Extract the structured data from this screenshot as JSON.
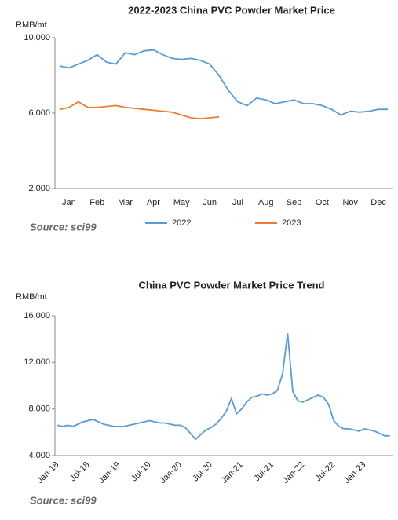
{
  "chart_data": [
    {
      "type": "line",
      "title": "2022-2023 China PVC Powder Market Price",
      "y_label": "RMB/mt",
      "source": "Source: sci99",
      "categories": [
        null,
        "Jan",
        null,
        null,
        "Feb",
        null,
        null,
        "Mar",
        null,
        null,
        "Apr",
        null,
        null,
        "May",
        null,
        null,
        "Jun",
        null,
        null,
        "Jul",
        null,
        null,
        "Aug",
        null,
        null,
        "Sep",
        null,
        null,
        "Oct",
        null,
        null,
        "Nov",
        null,
        null,
        "Dec",
        null
      ],
      "series": [
        {
          "name": "2022",
          "color": "#5b9bd5",
          "values": [
            8500,
            8400,
            8600,
            8800,
            9100,
            8700,
            8600,
            9200,
            9100,
            9300,
            9350,
            9100,
            8900,
            8850,
            8900,
            8800,
            8600,
            8000,
            7200,
            6600,
            6400,
            6800,
            6700,
            6500,
            6600,
            6700,
            6500,
            6500,
            6400,
            6200,
            5900,
            6100,
            6050,
            6100,
            6200,
            6200
          ]
        },
        {
          "name": "2023",
          "color": "#ed7d31",
          "values": [
            6200,
            6300,
            6600,
            6300,
            6300,
            6350,
            6400,
            6300,
            6250,
            6200,
            6150,
            6100,
            6050,
            5900,
            5750,
            5700,
            5750,
            5800,
            null,
            null,
            null,
            null,
            null,
            null,
            null,
            null,
            null,
            null,
            null,
            null,
            null,
            null,
            null,
            null,
            null,
            null
          ]
        }
      ],
      "ylim": [
        2000,
        10000
      ],
      "yticks": [
        {
          "value": 2000,
          "label": "2,000"
        },
        {
          "value": 6000,
          "label": "6,000"
        },
        {
          "value": 10000,
          "label": "10,000"
        }
      ],
      "grid": false,
      "legend": "bottom"
    },
    {
      "type": "line",
      "title": "China PVC Powder Market Price Trend",
      "y_label": "RMB/mt",
      "source": "Source: sci99",
      "categories": [
        "Jan-18",
        null,
        null,
        null,
        null,
        null,
        "Jul-18",
        null,
        null,
        null,
        null,
        null,
        "Jan-19",
        null,
        null,
        null,
        null,
        null,
        "Jul-19",
        null,
        null,
        null,
        null,
        null,
        "Jan-20",
        null,
        null,
        null,
        null,
        null,
        "Jul-20",
        null,
        null,
        null,
        null,
        null,
        "Jan-21",
        null,
        null,
        null,
        null,
        null,
        "Jul-21",
        null,
        null,
        null,
        null,
        null,
        "Jan-22",
        null,
        null,
        null,
        null,
        null,
        "Jul-22",
        null,
        null,
        null,
        null,
        null,
        "Jan-23",
        null,
        null,
        null,
        null,
        null
      ],
      "series": [
        {
          "color": "#5b9bd5",
          "values": [
            6600,
            6500,
            6600,
            6500,
            6700,
            6900,
            7000,
            7100,
            6900,
            6700,
            6600,
            6500,
            6500,
            6500,
            6600,
            6700,
            6800,
            6900,
            7000,
            6900,
            6800,
            6800,
            6700,
            6600,
            6600,
            6400,
            5900,
            5400,
            5800,
            6200,
            6400,
            6700,
            7200,
            7800,
            8900,
            7600,
            8000,
            8600,
            9000,
            9100,
            9300,
            9200,
            9300,
            9600,
            11000,
            14500,
            9500,
            8700,
            8600,
            8800,
            9000,
            9200,
            9000,
            8400,
            7000,
            6500,
            6300,
            6300,
            6200,
            6100,
            6300,
            6200,
            6100,
            5900,
            5700,
            5700
          ]
        }
      ],
      "ylim": [
        4000,
        16000
      ],
      "yticks": [
        {
          "value": 4000,
          "label": "4,000"
        },
        {
          "value": 8000,
          "label": "8,000"
        },
        {
          "value": 12000,
          "label": "12,000"
        },
        {
          "value": 16000,
          "label": "16,000"
        }
      ],
      "grid": false
    }
  ]
}
